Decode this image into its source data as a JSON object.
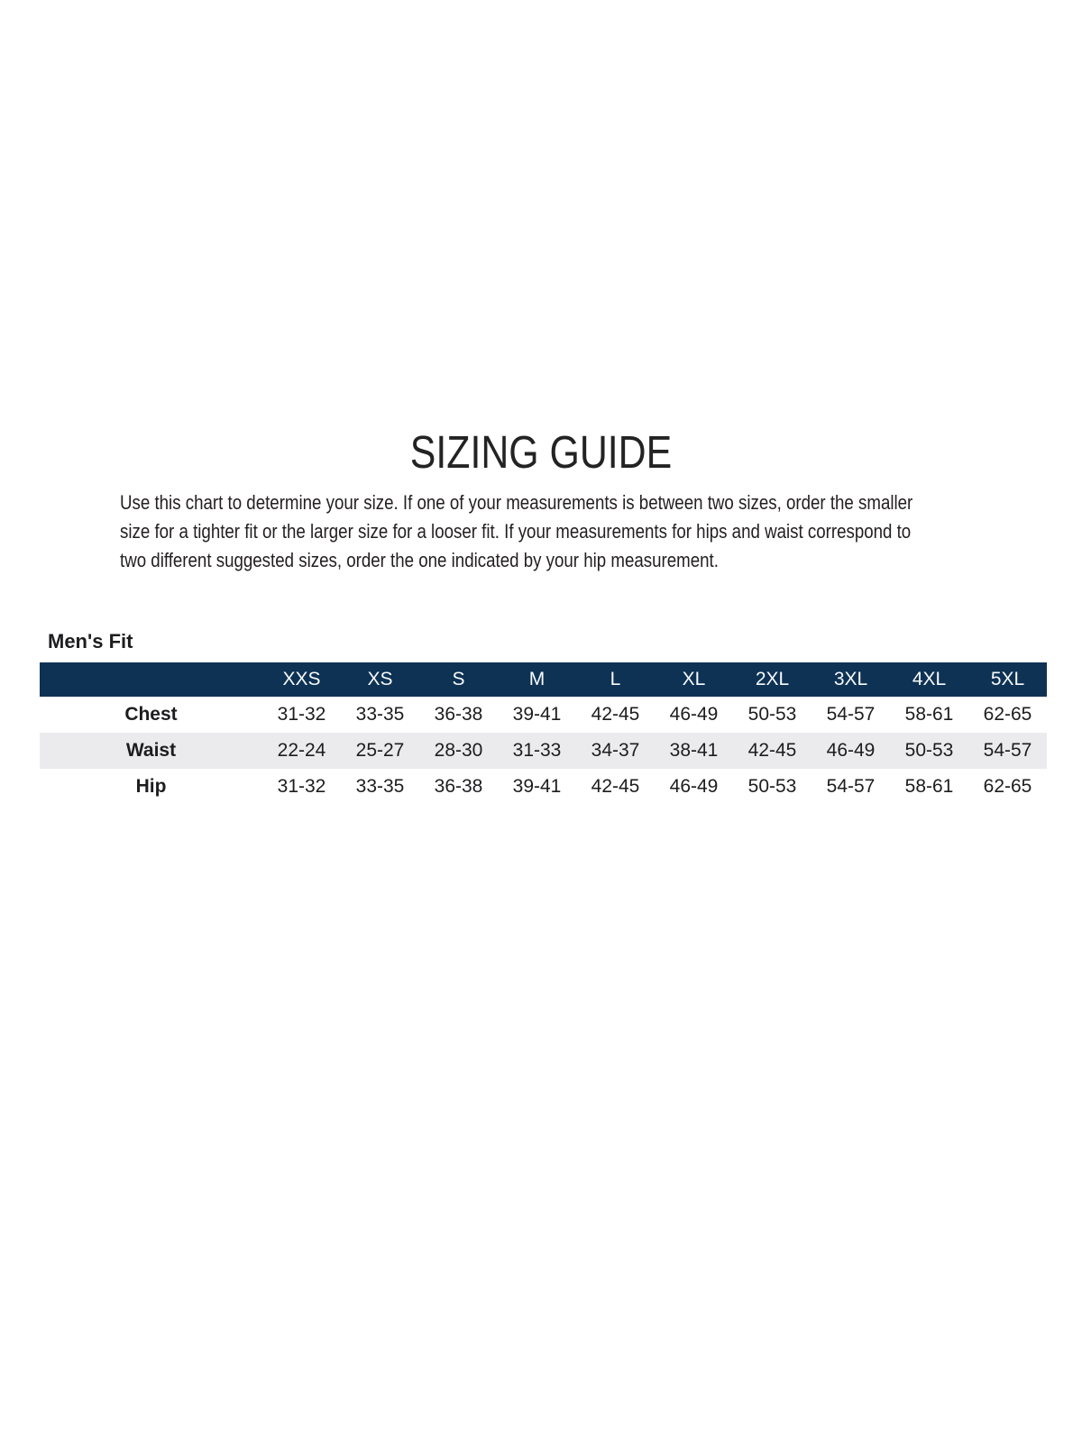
{
  "page": {
    "title": "SIZING GUIDE",
    "intro": "Use this chart to determine your size. If one of your measurements is between two sizes, order the smaller\nsize for a tighter fit or the larger size for a looser fit. If your measurements for hips and waist correspond to\ntwo different suggested sizes, order the one indicated by your hip measurement."
  },
  "colors": {
    "table_header_bg": "#0e3254",
    "table_header_text": "#ffffff",
    "row_alternate_bg": "#ebebed",
    "body_text": "#231f20"
  },
  "size_table": {
    "section_label": "Men's Fit",
    "columns": [
      "XXS",
      "XS",
      "S",
      "M",
      "L",
      "XL",
      "2XL",
      "3XL",
      "4XL",
      "5XL"
    ],
    "rows": [
      {
        "label": "Chest",
        "values": [
          "31-32",
          "33-35",
          "36-38",
          "39-41",
          "42-45",
          "46-49",
          "50-53",
          "54-57",
          "58-61",
          "62-65"
        ]
      },
      {
        "label": "Waist",
        "values": [
          "22-24",
          "25-27",
          "28-30",
          "31-33",
          "34-37",
          "38-41",
          "42-45",
          "46-49",
          "50-53",
          "54-57"
        ]
      },
      {
        "label": "Hip",
        "values": [
          "31-32",
          "33-35",
          "36-38",
          "39-41",
          "42-45",
          "46-49",
          "50-53",
          "54-57",
          "58-61",
          "62-65"
        ]
      }
    ]
  }
}
